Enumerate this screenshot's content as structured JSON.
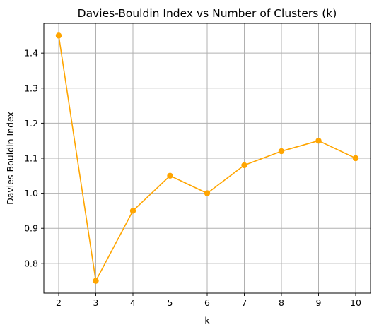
{
  "chart_data": {
    "type": "line",
    "title": "Davies-Bouldin Index vs Number of Clusters (k)",
    "xlabel": "k",
    "ylabel": "Davies-Bouldin Index",
    "x": [
      2,
      3,
      4,
      5,
      6,
      7,
      8,
      9,
      10
    ],
    "series": [
      {
        "values": [
          1.45,
          0.75,
          0.95,
          1.05,
          1.0,
          1.08,
          1.12,
          1.15,
          1.1
        ],
        "color": "#FFA500",
        "marker": "circle"
      }
    ],
    "xticks": [
      "2",
      "3",
      "4",
      "5",
      "6",
      "7",
      "8",
      "9",
      "10"
    ],
    "yticks": [
      "0.8",
      "0.9",
      "1.0",
      "1.1",
      "1.2",
      "1.3",
      "1.4"
    ],
    "xlim": [
      1.6,
      10.4
    ],
    "ylim": [
      0.715,
      1.485
    ],
    "grid": true,
    "legend": "none"
  }
}
